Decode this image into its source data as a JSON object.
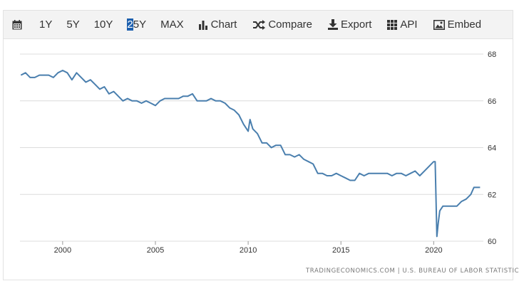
{
  "toolbar": {
    "calendar_icon": "calendar-icon",
    "ranges": [
      {
        "label": "1Y"
      },
      {
        "label": "5Y"
      },
      {
        "label": "10Y"
      },
      {
        "label_first": "2",
        "label_rest": "5Y",
        "active": true
      },
      {
        "label": "MAX"
      }
    ],
    "tools": [
      {
        "label": "Chart",
        "icon": "bar-chart-icon"
      },
      {
        "label": "Compare",
        "icon": "shuffle-icon"
      },
      {
        "label": "Export",
        "icon": "download-icon"
      },
      {
        "label": "API",
        "icon": "grid-icon"
      },
      {
        "label": "Embed",
        "icon": "image-icon"
      }
    ]
  },
  "source_text": "TRADINGECONOMICS.COM | U.S. BUREAU OF LABOR STATISTICS",
  "colors": {
    "line": "#4a7fae",
    "grid": "#dcdcdc",
    "axis_text": "#333333"
  },
  "chart_data": {
    "type": "line",
    "title": "",
    "xlabel": "",
    "ylabel": "",
    "x_ticks": [
      "2000",
      "2005",
      "2010",
      "2015",
      "2020"
    ],
    "y_ticks": [
      "60",
      "62",
      "64",
      "66",
      "68"
    ],
    "xlim": [
      1997.7,
      2022.6
    ],
    "ylim": [
      60,
      68
    ],
    "grid": "horizontal",
    "y_axis_side": "right",
    "series": [
      {
        "x": [
          1997.75,
          1998.0,
          1998.25,
          1998.5,
          1998.75,
          1999.0,
          1999.25,
          1999.5,
          1999.75,
          2000.0,
          2000.25,
          2000.5,
          2000.75,
          2001.0,
          2001.25,
          2001.5,
          2001.75,
          2002.0,
          2002.25,
          2002.5,
          2002.75,
          2003.0,
          2003.25,
          2003.5,
          2003.75,
          2004.0,
          2004.25,
          2004.5,
          2004.75,
          2005.0,
          2005.25,
          2005.5,
          2005.75,
          2006.0,
          2006.25,
          2006.5,
          2006.75,
          2007.0,
          2007.25,
          2007.5,
          2007.75,
          2008.0,
          2008.25,
          2008.5,
          2008.75,
          2009.0,
          2009.25,
          2009.5,
          2009.75,
          2010.0,
          2010.1,
          2010.25,
          2010.5,
          2010.75,
          2011.0,
          2011.25,
          2011.5,
          2011.75,
          2012.0,
          2012.25,
          2012.5,
          2012.75,
          2013.0,
          2013.25,
          2013.5,
          2013.75,
          2014.0,
          2014.25,
          2014.5,
          2014.75,
          2015.0,
          2015.25,
          2015.5,
          2015.75,
          2016.0,
          2016.25,
          2016.5,
          2016.75,
          2017.0,
          2017.25,
          2017.5,
          2017.75,
          2018.0,
          2018.25,
          2018.5,
          2018.75,
          2019.0,
          2019.25,
          2019.5,
          2019.75,
          2020.0,
          2020.08,
          2020.17,
          2020.25,
          2020.33,
          2020.5,
          2020.75,
          2021.0,
          2021.25,
          2021.5,
          2021.75,
          2022.0,
          2022.17,
          2022.33,
          2022.5
        ],
        "y": [
          67.1,
          67.2,
          67.0,
          67.0,
          67.1,
          67.1,
          67.1,
          67.0,
          67.2,
          67.3,
          67.2,
          66.9,
          67.2,
          67.0,
          66.8,
          66.9,
          66.7,
          66.5,
          66.6,
          66.3,
          66.4,
          66.2,
          66.0,
          66.1,
          66.0,
          66.0,
          65.9,
          66.0,
          65.9,
          65.8,
          66.0,
          66.1,
          66.1,
          66.1,
          66.1,
          66.2,
          66.2,
          66.3,
          66.0,
          66.0,
          66.0,
          66.1,
          66.0,
          66.0,
          65.9,
          65.7,
          65.6,
          65.4,
          65.0,
          64.7,
          65.2,
          64.8,
          64.6,
          64.2,
          64.2,
          64.0,
          64.1,
          64.1,
          63.7,
          63.7,
          63.6,
          63.7,
          63.5,
          63.4,
          63.3,
          62.9,
          62.9,
          62.8,
          62.8,
          62.9,
          62.8,
          62.7,
          62.6,
          62.6,
          62.9,
          62.8,
          62.9,
          62.9,
          62.9,
          62.9,
          62.9,
          62.8,
          62.9,
          62.9,
          62.8,
          62.9,
          63.0,
          62.8,
          63.0,
          63.2,
          63.4,
          63.4,
          60.2,
          60.8,
          61.3,
          61.5,
          61.5,
          61.5,
          61.5,
          61.7,
          61.8,
          62.0,
          62.3,
          62.3,
          62.3
        ]
      }
    ]
  }
}
